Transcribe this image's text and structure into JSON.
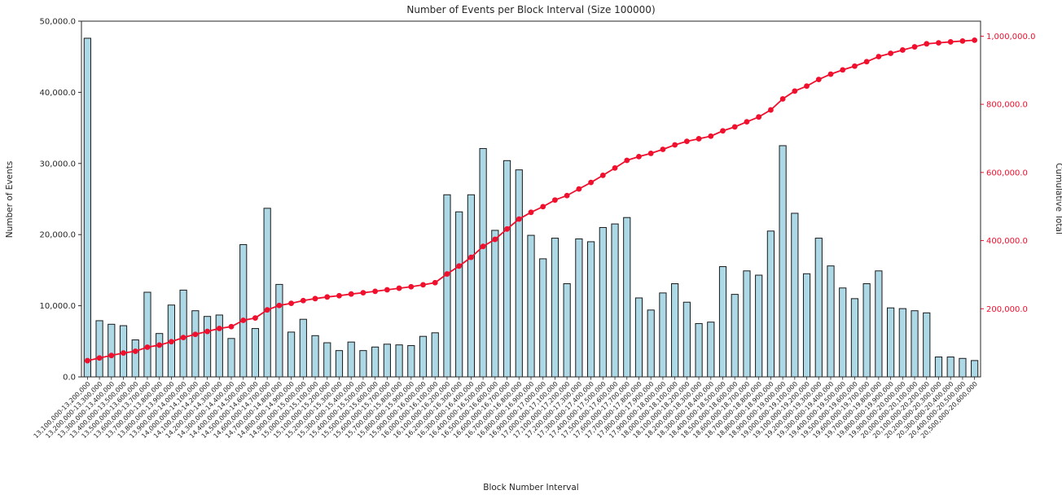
{
  "chart_data": {
    "type": "bar",
    "title": "Number of Events per Block Interval (Size 100000)",
    "xlabel": "Block Number Interval",
    "ylabel_left": "Number of Events",
    "ylabel_right": "Cumulative Total",
    "grid": false,
    "legend": "none",
    "ylim_left": [
      0,
      50000
    ],
    "ylim_right": [
      0,
      1044000
    ],
    "yticks_left": {
      "values": [
        0,
        10000,
        20000,
        30000,
        40000,
        50000
      ],
      "labels": [
        "0.0",
        "10,000.0",
        "20,000.0",
        "30,000.0",
        "40,000.0",
        "50,000.0"
      ]
    },
    "yticks_right": {
      "values": [
        200000,
        400000,
        600000,
        800000,
        1000000
      ],
      "labels": [
        "200,000.0",
        "400,000.0",
        "600,000.0",
        "800,000.0",
        "1,000,000.0"
      ]
    },
    "colors": {
      "bar_fill": "#add8e6",
      "bar_edge": "#1a1a1a",
      "line": "#f00f2d",
      "text": "#262626",
      "background": "#ffffff"
    },
    "categories": [
      "13,100,000-13,200,000",
      "13,200,000-13,300,000",
      "13,300,000-13,400,000",
      "13,400,000-13,500,000",
      "13,500,000-13,600,000",
      "13,600,000-13,700,000",
      "13,700,000-13,800,000",
      "13,800,000-13,900,000",
      "13,900,000-14,000,000",
      "14,000,000-14,100,000",
      "14,100,000-14,200,000",
      "14,200,000-14,300,000",
      "14,300,000-14,400,000",
      "14,400,000-14,500,000",
      "14,500,000-14,600,000",
      "14,600,000-14,700,000",
      "14,700,000-14,800,000",
      "14,800,000-14,900,000",
      "14,900,000-15,000,000",
      "15,000,000-15,100,000",
      "15,100,000-15,200,000",
      "15,200,000-15,300,000",
      "15,300,000-15,400,000",
      "15,400,000-15,500,000",
      "15,500,000-15,600,000",
      "15,600,000-15,700,000",
      "15,700,000-15,800,000",
      "15,800,000-15,900,000",
      "15,900,000-16,000,000",
      "16,000,000-16,100,000",
      "16,100,000-16,200,000",
      "16,200,000-16,300,000",
      "16,300,000-16,400,000",
      "16,400,000-16,500,000",
      "16,500,000-16,600,000",
      "16,600,000-16,700,000",
      "16,700,000-16,800,000",
      "16,800,000-16,900,000",
      "16,900,000-17,000,000",
      "17,000,000-17,100,000",
      "17,100,000-17,200,000",
      "17,200,000-17,300,000",
      "17,300,000-17,400,000",
      "17,400,000-17,500,000",
      "17,500,000-17,600,000",
      "17,600,000-17,700,000",
      "17,700,000-17,800,000",
      "17,800,000-17,900,000",
      "17,900,000-18,000,000",
      "18,000,000-18,100,000",
      "18,100,000-18,200,000",
      "18,200,000-18,300,000",
      "18,300,000-18,400,000",
      "18,400,000-18,500,000",
      "18,500,000-18,600,000",
      "18,600,000-18,700,000",
      "18,700,000-18,800,000",
      "18,800,000-18,900,000",
      "18,900,000-19,000,000",
      "19,000,000-19,100,000",
      "19,100,000-19,200,000",
      "19,200,000-19,300,000",
      "19,300,000-19,400,000",
      "19,400,000-19,500,000",
      "19,500,000-19,600,000",
      "19,600,000-19,700,000",
      "19,700,000-19,800,000",
      "19,800,000-19,900,000",
      "19,900,000-20,000,000",
      "20,000,000-20,100,000",
      "20,100,000-20,200,000",
      "20,200,000-20,300,000",
      "20,300,000-20,400,000",
      "20,400,000-20,500,000",
      "20,500,000-20,600,000"
    ],
    "series": [
      {
        "name": "Number of Events",
        "type": "bar",
        "axis": "left",
        "values": [
          47600,
          7900,
          7400,
          7200,
          5200,
          11900,
          6100,
          10100,
          12200,
          9300,
          8500,
          8700,
          5400,
          18600,
          6800,
          23700,
          13000,
          6300,
          8100,
          5800,
          4800,
          3700,
          4900,
          3700,
          4200,
          4600,
          4500,
          4400,
          5700,
          6200,
          25600,
          23200,
          25600,
          32100,
          20600,
          30400,
          29100,
          19900,
          16600,
          19500,
          13100,
          19400,
          19000,
          21000,
          21500,
          22400,
          11100,
          9400,
          11800,
          13100,
          10500,
          7500,
          7700,
          15500,
          11600,
          14900,
          14300,
          20500,
          32500,
          23000,
          14500,
          19500,
          15600,
          12500,
          11000,
          13100,
          14900,
          9700,
          9600,
          9300,
          9000,
          2800,
          2800,
          2600,
          2300
        ]
      },
      {
        "name": "Cumulative Total",
        "type": "line",
        "axis": "right",
        "values": [
          47600,
          55500,
          62900,
          70100,
          75300,
          87200,
          93300,
          103400,
          115600,
          124900,
          133400,
          142100,
          147500,
          166100,
          172900,
          196600,
          209600,
          215900,
          224000,
          229800,
          234600,
          238300,
          243200,
          246900,
          251100,
          255700,
          260200,
          264600,
          270300,
          276500,
          302100,
          325300,
          350900,
          383000,
          403600,
          434000,
          463100,
          483000,
          499600,
          519100,
          532200,
          551600,
          570600,
          591600,
          613100,
          635500,
          646600,
          656000,
          667800,
          680900,
          691400,
          698900,
          706600,
          722100,
          733700,
          748600,
          762900,
          783400,
          815900,
          838900,
          853400,
          872900,
          888500,
          901000,
          912000,
          925100,
          940000,
          949700,
          959300,
          968600,
          977600,
          980400,
          983200,
          985800,
          988100
        ]
      }
    ]
  }
}
